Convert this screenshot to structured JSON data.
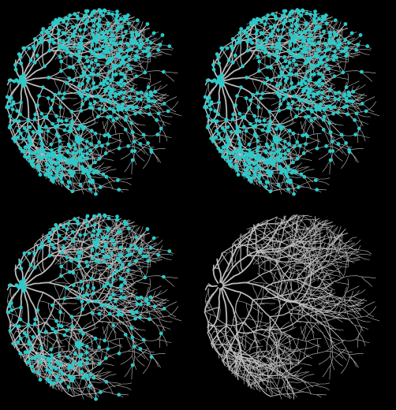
{
  "figure": {
    "background_color": "#000000",
    "vessel_color": "#bdbdbd",
    "node_color": "#2cc9c9",
    "panels": [
      {
        "name": "top-left",
        "overlay": "nodes",
        "node_density": "high"
      },
      {
        "name": "top-right",
        "overlay": "nodes",
        "node_density": "high"
      },
      {
        "name": "bottom-left",
        "overlay": "nodes",
        "node_density": "medium"
      },
      {
        "name": "bottom-right",
        "overlay": "none",
        "node_density": "none"
      }
    ]
  }
}
